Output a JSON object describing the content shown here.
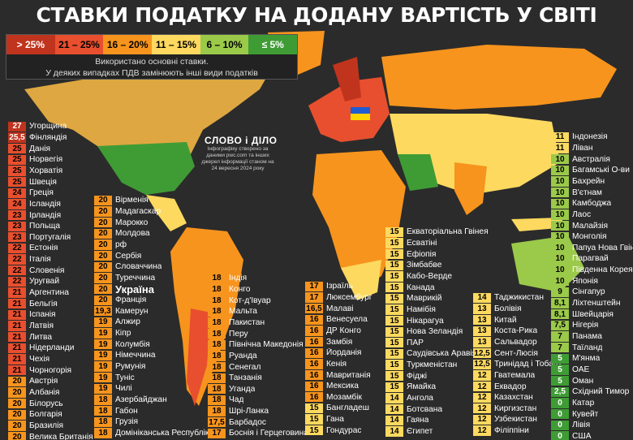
{
  "title": "СТАВКИ ПОДАТКУ НА ДОДАНУ ВАРТІСТЬ У СВІТІ",
  "legend": {
    "items": [
      {
        "label": "> 25%",
        "color": "#c0341d"
      },
      {
        "label": "21 – 25%",
        "color": "#e84f2e"
      },
      {
        "label": "16 – 20%",
        "color": "#f7941d"
      },
      {
        "label": "11 – 15%",
        "color": "#fdd95f"
      },
      {
        "label": "6 – 10%",
        "color": "#9bc94a"
      },
      {
        "label": "≤ 5%",
        "color": "#3f9c35"
      }
    ],
    "note_line1": "Використано основні ставки.",
    "note_line2": "У деяких випадках ПДВ замінюють інші види податків"
  },
  "watermark": {
    "logo": "СЛОВО і ДІЛО",
    "text": "Інфографіку створено за даними pwc.com та інших джерел інформації станом на 24 вересня 2024 року"
  },
  "columns": [
    [
      {
        "rate": "27",
        "name": "Угорщина",
        "color": "darkred"
      },
      {
        "rate": "25,5",
        "name": "Фінляндія",
        "color": "darkred"
      },
      {
        "rate": "25",
        "name": "Данія",
        "color": "red"
      },
      {
        "rate": "25",
        "name": "Норвегія",
        "color": "red"
      },
      {
        "rate": "25",
        "name": "Хорватія",
        "color": "red"
      },
      {
        "rate": "25",
        "name": "Швеція",
        "color": "red"
      },
      {
        "rate": "24",
        "name": "Греція",
        "color": "red"
      },
      {
        "rate": "24",
        "name": "Ісландія",
        "color": "red"
      },
      {
        "rate": "23",
        "name": "Ірландія",
        "color": "red"
      },
      {
        "rate": "23",
        "name": "Польща",
        "color": "red"
      },
      {
        "rate": "23",
        "name": "Португалія",
        "color": "red"
      },
      {
        "rate": "22",
        "name": "Естонія",
        "color": "red"
      },
      {
        "rate": "22",
        "name": "Італія",
        "color": "red"
      },
      {
        "rate": "22",
        "name": "Словенія",
        "color": "red"
      },
      {
        "rate": "22",
        "name": "Уругвай",
        "color": "red"
      },
      {
        "rate": "21",
        "name": "Аргентина",
        "color": "red"
      },
      {
        "rate": "21",
        "name": "Бельгія",
        "color": "red"
      },
      {
        "rate": "21",
        "name": "Іспанія",
        "color": "red"
      },
      {
        "rate": "21",
        "name": "Латвія",
        "color": "red"
      },
      {
        "rate": "21",
        "name": "Литва",
        "color": "red"
      },
      {
        "rate": "21",
        "name": "Нідерланди",
        "color": "red"
      },
      {
        "rate": "21",
        "name": "Чехія",
        "color": "red"
      },
      {
        "rate": "21",
        "name": "Чорногорія",
        "color": "red"
      },
      {
        "rate": "20",
        "name": "Австрія",
        "color": "orange"
      },
      {
        "rate": "20",
        "name": "Албанія",
        "color": "orange"
      },
      {
        "rate": "20",
        "name": "Білорусь",
        "color": "orange"
      },
      {
        "rate": "20",
        "name": "Болгарія",
        "color": "orange"
      },
      {
        "rate": "20",
        "name": "Бразилія",
        "color": "orange"
      },
      {
        "rate": "20",
        "name": "Велика Британія",
        "color": "orange"
      }
    ],
    [
      {
        "rate": "20",
        "name": "Вірменія",
        "color": "orange"
      },
      {
        "rate": "20",
        "name": "Мадагаскар",
        "color": "orange"
      },
      {
        "rate": "20",
        "name": "Марокко",
        "color": "orange"
      },
      {
        "rate": "20",
        "name": "Молдова",
        "color": "orange"
      },
      {
        "rate": "20",
        "name": "рф",
        "color": "orange"
      },
      {
        "rate": "20",
        "name": "Сербія",
        "color": "orange"
      },
      {
        "rate": "20",
        "name": "Словаччина",
        "color": "orange"
      },
      {
        "rate": "20",
        "name": "Туреччина",
        "color": "orange"
      },
      {
        "rate": "20",
        "name": "Україна",
        "color": "orange",
        "big": true
      },
      {
        "rate": "20",
        "name": "Франція",
        "color": "orange"
      },
      {
        "rate": "19,3",
        "name": "Камерун",
        "color": "orange"
      },
      {
        "rate": "19",
        "name": "Алжир",
        "color": "orange"
      },
      {
        "rate": "19",
        "name": "Кіпр",
        "color": "orange"
      },
      {
        "rate": "19",
        "name": "Колумбія",
        "color": "orange"
      },
      {
        "rate": "19",
        "name": "Німеччина",
        "color": "orange"
      },
      {
        "rate": "19",
        "name": "Румунія",
        "color": "orange"
      },
      {
        "rate": "19",
        "name": "Туніс",
        "color": "orange"
      },
      {
        "rate": "19",
        "name": "Чилі",
        "color": "orange"
      },
      {
        "rate": "18",
        "name": "Азербайджан",
        "color": "orange"
      },
      {
        "rate": "18",
        "name": "Габон",
        "color": "orange"
      },
      {
        "rate": "18",
        "name": "Грузія",
        "color": "orange"
      },
      {
        "rate": "18",
        "name": "Домініканська Республіка",
        "color": "orange"
      }
    ],
    [
      {
        "rate": "18",
        "name": "Індія",
        "color": "orange"
      },
      {
        "rate": "18",
        "name": "Конго",
        "color": "orange"
      },
      {
        "rate": "18",
        "name": "Кот-д'Івуар",
        "color": "orange"
      },
      {
        "rate": "18",
        "name": "Мальта",
        "color": "orange"
      },
      {
        "rate": "18",
        "name": "Пакистан",
        "color": "orange"
      },
      {
        "rate": "18",
        "name": "Перу",
        "color": "orange"
      },
      {
        "rate": "18",
        "name": "Північна Македонія",
        "color": "orange"
      },
      {
        "rate": "18",
        "name": "Руанда",
        "color": "orange"
      },
      {
        "rate": "18",
        "name": "Сенегал",
        "color": "orange"
      },
      {
        "rate": "18",
        "name": "Танзанія",
        "color": "orange"
      },
      {
        "rate": "18",
        "name": "Уганда",
        "color": "orange"
      },
      {
        "rate": "18",
        "name": "Чад",
        "color": "orange"
      },
      {
        "rate": "18",
        "name": "Шрі-Ланка",
        "color": "orange"
      },
      {
        "rate": "17,5",
        "name": "Барбадос",
        "color": "orange"
      },
      {
        "rate": "17",
        "name": "Боснія і Герцеговина",
        "color": "orange"
      }
    ],
    [
      {
        "rate": "17",
        "name": "Ізраїль",
        "color": "orange"
      },
      {
        "rate": "17",
        "name": "Люксембург",
        "color": "orange"
      },
      {
        "rate": "16,5",
        "name": "Малаві",
        "color": "orange"
      },
      {
        "rate": "16",
        "name": "Венесуела",
        "color": "orange"
      },
      {
        "rate": "16",
        "name": "ДР Конго",
        "color": "orange"
      },
      {
        "rate": "16",
        "name": "Замбія",
        "color": "orange"
      },
      {
        "rate": "16",
        "name": "Йорданія",
        "color": "orange"
      },
      {
        "rate": "16",
        "name": "Кенія",
        "color": "orange"
      },
      {
        "rate": "16",
        "name": "Мавританія",
        "color": "orange"
      },
      {
        "rate": "16",
        "name": "Мексика",
        "color": "orange"
      },
      {
        "rate": "16",
        "name": "Мозамбік",
        "color": "orange"
      },
      {
        "rate": "15",
        "name": "Бангладеш",
        "color": "yellow"
      },
      {
        "rate": "15",
        "name": "Гана",
        "color": "yellow"
      },
      {
        "rate": "15",
        "name": "Гондурас",
        "color": "yellow"
      }
    ],
    [
      {
        "rate": "15",
        "name": "Екваторіальна Гвінея",
        "color": "yellow"
      },
      {
        "rate": "15",
        "name": "Есватіні",
        "color": "yellow"
      },
      {
        "rate": "15",
        "name": "Ефіопія",
        "color": "yellow"
      },
      {
        "rate": "15",
        "name": "Зімбабве",
        "color": "yellow"
      },
      {
        "rate": "15",
        "name": "Кабо-Верде",
        "color": "yellow"
      },
      {
        "rate": "15",
        "name": "Канада",
        "color": "yellow"
      },
      {
        "rate": "15",
        "name": "Маврикій",
        "color": "yellow"
      },
      {
        "rate": "15",
        "name": "Намібія",
        "color": "yellow"
      },
      {
        "rate": "15",
        "name": "Нікарагуа",
        "color": "yellow"
      },
      {
        "rate": "15",
        "name": "Нова Зеландія",
        "color": "yellow"
      },
      {
        "rate": "15",
        "name": "ПАР",
        "color": "yellow"
      },
      {
        "rate": "15",
        "name": "Саудівська Аравія",
        "color": "yellow"
      },
      {
        "rate": "15",
        "name": "Туркменістан",
        "color": "yellow"
      },
      {
        "rate": "15",
        "name": "Фіджі",
        "color": "yellow"
      },
      {
        "rate": "15",
        "name": "Ямайка",
        "color": "yellow"
      },
      {
        "rate": "14",
        "name": "Ангола",
        "color": "yellow"
      },
      {
        "rate": "14",
        "name": "Ботсвана",
        "color": "yellow"
      },
      {
        "rate": "14",
        "name": "Гаяна",
        "color": "yellow"
      },
      {
        "rate": "14",
        "name": "Єгипет",
        "color": "yellow"
      }
    ],
    [
      {
        "rate": "14",
        "name": "Таджикистан",
        "color": "yellow"
      },
      {
        "rate": "13",
        "name": "Болівія",
        "color": "yellow"
      },
      {
        "rate": "13",
        "name": "Китай",
        "color": "yellow"
      },
      {
        "rate": "13",
        "name": "Коста-Рика",
        "color": "yellow"
      },
      {
        "rate": "13",
        "name": "Сальвадор",
        "color": "yellow"
      },
      {
        "rate": "12,5",
        "name": "Сент-Люсія",
        "color": "yellow"
      },
      {
        "rate": "12,5",
        "name": "Тринідад і Тобаго",
        "color": "yellow"
      },
      {
        "rate": "12",
        "name": "Гватемала",
        "color": "yellow"
      },
      {
        "rate": "12",
        "name": "Еквадор",
        "color": "yellow"
      },
      {
        "rate": "12",
        "name": "Казахстан",
        "color": "yellow"
      },
      {
        "rate": "12",
        "name": "Киргизстан",
        "color": "yellow"
      },
      {
        "rate": "12",
        "name": "Узбекистан",
        "color": "yellow"
      },
      {
        "rate": "12",
        "name": "Філіппіни",
        "color": "yellow"
      }
    ],
    [
      {
        "rate": "11",
        "name": "Індонезія",
        "color": "yellow"
      },
      {
        "rate": "11",
        "name": "Ліван",
        "color": "yellow"
      },
      {
        "rate": "10",
        "name": "Австралія",
        "color": "lightgreen"
      },
      {
        "rate": "10",
        "name": "Багамські О-ви",
        "color": "lightgreen"
      },
      {
        "rate": "10",
        "name": "Бахрейн",
        "color": "lightgreen"
      },
      {
        "rate": "10",
        "name": "В'єтнам",
        "color": "lightgreen"
      },
      {
        "rate": "10",
        "name": "Камбоджа",
        "color": "lightgreen"
      },
      {
        "rate": "10",
        "name": "Лаос",
        "color": "lightgreen"
      },
      {
        "rate": "10",
        "name": "Малайзія",
        "color": "lightgreen"
      },
      {
        "rate": "10",
        "name": "Монголія",
        "color": "lightgreen"
      },
      {
        "rate": "10",
        "name": "Папуа Нова Гвінея",
        "color": "lightgreen"
      },
      {
        "rate": "10",
        "name": "Парагвай",
        "color": "lightgreen"
      },
      {
        "rate": "10",
        "name": "Південна Корея",
        "color": "lightgreen"
      },
      {
        "rate": "10",
        "name": "Японія",
        "color": "lightgreen"
      },
      {
        "rate": "9",
        "name": "Сінгапур",
        "color": "lightgreen"
      },
      {
        "rate": "8,1",
        "name": "Ліхтенштейн",
        "color": "lightgreen"
      },
      {
        "rate": "8,1",
        "name": "Швейцарія",
        "color": "lightgreen"
      },
      {
        "rate": "7,5",
        "name": "Нігерія",
        "color": "lightgreen"
      },
      {
        "rate": "7",
        "name": "Панама",
        "color": "lightgreen"
      },
      {
        "rate": "7",
        "name": "Таїланд",
        "color": "lightgreen"
      },
      {
        "rate": "5",
        "name": "М'янма",
        "color": "green"
      },
      {
        "rate": "5",
        "name": "ОАЕ",
        "color": "green"
      },
      {
        "rate": "5",
        "name": "Оман",
        "color": "green"
      },
      {
        "rate": "2,5",
        "name": "Східний Тимор",
        "color": "green"
      },
      {
        "rate": "0",
        "name": "Катар",
        "color": "green"
      },
      {
        "rate": "0",
        "name": "Кувейт",
        "color": "green"
      },
      {
        "rate": "0",
        "name": "Лівія",
        "color": "green"
      },
      {
        "rate": "0",
        "name": "США",
        "color": "green"
      }
    ]
  ]
}
